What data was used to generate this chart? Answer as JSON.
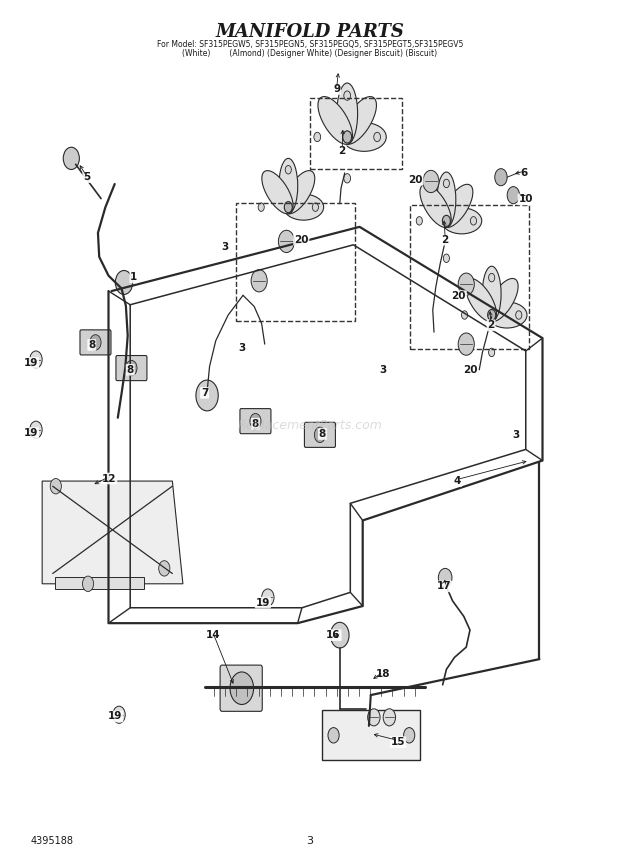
{
  "title": "MANIFOLD PARTS",
  "subtitle1": "For Model: SF315PEGW5, SF315PEGN5, SF315PEGQ5, SF315PEGT5,SF315PEGV5",
  "subtitle2": "(White)        (Almond) (Designer White) (Designer Biscuit) (Biscuit)",
  "page_num": "3",
  "doc_num": "4395188",
  "bg_color": "#ffffff",
  "line_color": "#2a2a2a",
  "text_color": "#1a1a1a",
  "watermark": "ReplacementParts.com"
}
